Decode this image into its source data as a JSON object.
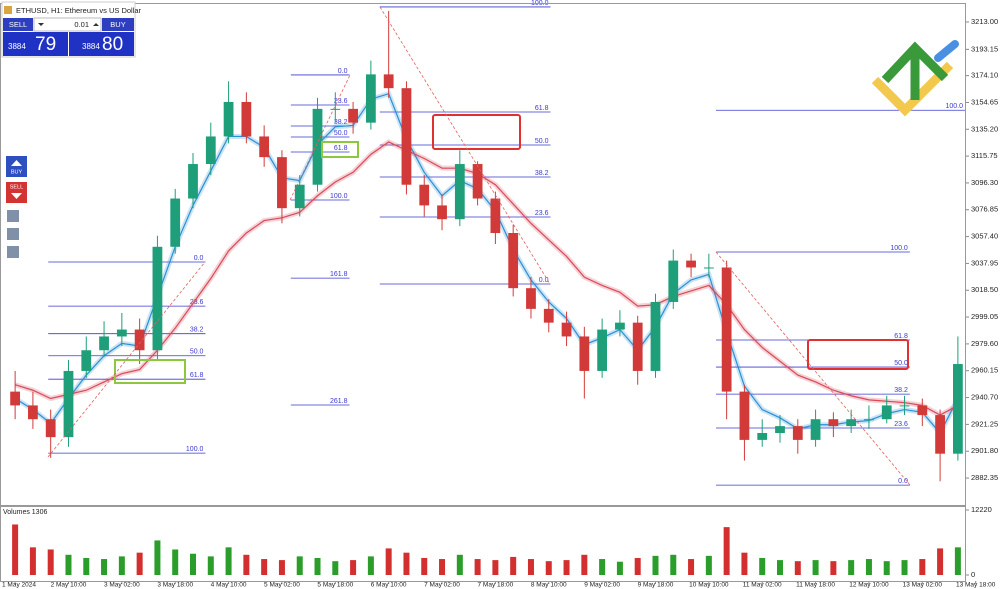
{
  "chart_data": {
    "type": "candlestick",
    "symbol": "ETHUSD, H1: Ethereum vs US Dollar",
    "trade_panel": {
      "sell": "SELL",
      "buy": "BUY",
      "lot": "0.01",
      "bid_main": "3884",
      "bid_pips": "79",
      "ask_main": "3884",
      "ask_pips": "80"
    },
    "side_buttons": {
      "buy": "BUY",
      "sell": "SELL"
    },
    "up_color": "#1f9e7a",
    "down_color": "#d23a3a",
    "grid": false,
    "xlim": [
      -0.85,
      53.4
    ],
    "xticks": [
      {
        "value": 0,
        "label": "1 May 2024"
      },
      {
        "value": 3,
        "label": "2 May 10:00"
      },
      {
        "value": 6,
        "label": "3 May 02:00"
      },
      {
        "value": 9,
        "label": "3 May 18:00"
      },
      {
        "value": 12,
        "label": "4 May 10:00"
      },
      {
        "value": 15,
        "label": "5 May 02:00"
      },
      {
        "value": 18,
        "label": "5 May 18:00"
      },
      {
        "value": 21,
        "label": "6 May 10:00"
      },
      {
        "value": 24,
        "label": "7 May 02:00"
      },
      {
        "value": 27,
        "label": "7 May 18:00"
      },
      {
        "value": 30,
        "label": "8 May 10:00"
      },
      {
        "value": 33,
        "label": "9 May 02:00"
      },
      {
        "value": 36,
        "label": "9 May 18:00"
      },
      {
        "value": 39,
        "label": "10 May 10:00"
      },
      {
        "value": 42,
        "label": "11 May 02:00"
      },
      {
        "value": 45,
        "label": "11 May 18:00"
      },
      {
        "value": 48,
        "label": "12 May 10:00"
      },
      {
        "value": 51,
        "label": "13 May 02:00"
      },
      {
        "value": 54,
        "label": "13 May 18:00"
      }
    ],
    "ylim": [
      2862.8,
      3225.3
    ],
    "yticks": [
      {
        "value": 3213,
        "label": "3213.00"
      },
      {
        "value": 3193.15,
        "label": "3193.15"
      },
      {
        "value": 3174.1,
        "label": "3174.10"
      },
      {
        "value": 3154.65,
        "label": "3154.65"
      },
      {
        "value": 3135.2,
        "label": "3135.20"
      },
      {
        "value": 3115.75,
        "label": "3115.75"
      },
      {
        "value": 3096.3,
        "label": "3096.30"
      },
      {
        "value": 3076.85,
        "label": "3076.85"
      },
      {
        "value": 3057.4,
        "label": "3057.40"
      },
      {
        "value": 3037.95,
        "label": "3037.95"
      },
      {
        "value": 3018.5,
        "label": "3018.50"
      },
      {
        "value": 2999.05,
        "label": "2999.05"
      },
      {
        "value": 2979.6,
        "label": "2979.60"
      },
      {
        "value": 2960.15,
        "label": "2960.15"
      },
      {
        "value": 2940.7,
        "label": "2940.70"
      },
      {
        "value": 2921.25,
        "label": "2921.25"
      },
      {
        "value": 2901.8,
        "label": "2901.80"
      },
      {
        "value": 2882.35,
        "label": "2882.35"
      }
    ],
    "open": [
      2945,
      2935,
      2925,
      2912,
      2960,
      2975,
      2985,
      2990,
      2975,
      3050,
      3085,
      3110,
      3130,
      3155,
      3130,
      3115,
      3078,
      3095,
      3150,
      3150,
      3140,
      3175,
      3165,
      3095,
      3080,
      3070,
      3110,
      3085,
      3060,
      3020,
      3005,
      2995,
      2985,
      2960,
      2990,
      2995,
      2960,
      3010,
      3040,
      3035,
      3035,
      2945,
      2910,
      2915,
      2920,
      2910,
      2925,
      2920,
      2925,
      2925,
      2935,
      2935,
      2928,
      2900
    ],
    "high": [
      2960,
      2945,
      2932,
      2968,
      2985,
      2996,
      3002,
      2998,
      3058,
      3092,
      3118,
      3140,
      3170,
      3162,
      3138,
      3120,
      3102,
      3158,
      3162,
      3155,
      3185,
      3221,
      3170,
      3102,
      3088,
      3120,
      3112,
      3090,
      3066,
      3028,
      3012,
      3003,
      2992,
      2998,
      3004,
      3000,
      3016,
      3048,
      3045,
      3045,
      3040,
      2950,
      2925,
      2928,
      2925,
      2932,
      2930,
      2932,
      2935,
      2942,
      2942,
      2940,
      2932,
      2985
    ],
    "low": [
      2925,
      2918,
      2897,
      2905,
      2955,
      2970,
      2978,
      2965,
      2968,
      3045,
      3078,
      3102,
      3125,
      3125,
      3108,
      3067,
      3072,
      3090,
      3140,
      3132,
      3135,
      3158,
      3088,
      3072,
      3062,
      3065,
      3080,
      3052,
      3014,
      2998,
      2988,
      2978,
      2940,
      2955,
      2985,
      2950,
      2955,
      3005,
      3028,
      3028,
      2925,
      2895,
      2905,
      2908,
      2900,
      2905,
      2912,
      2915,
      2918,
      2922,
      2928,
      2920,
      2880,
      2895
    ],
    "close": [
      2935,
      2925,
      2912,
      2960,
      2975,
      2985,
      2990,
      2975,
      3050,
      3085,
      3110,
      3130,
      3155,
      3130,
      3115,
      3078,
      3095,
      3150,
      3150,
      3140,
      3175,
      3165,
      3095,
      3080,
      3070,
      3110,
      3085,
      3060,
      3020,
      3005,
      2995,
      2985,
      2960,
      2990,
      2995,
      2960,
      3010,
      3040,
      3035,
      3035,
      2945,
      2910,
      2915,
      2920,
      2910,
      2925,
      2920,
      2925,
      2925,
      2935,
      2935,
      2928,
      2900,
      2965
    ],
    "series": [
      {
        "color": "#2b8fd6",
        "values": [
          2940,
          2932,
          2922,
          2940,
          2957,
          2971,
          2980,
          2978,
          3014,
          3050,
          3080,
          3105,
          3130,
          3130,
          3122,
          3100,
          3098,
          3124,
          3137,
          3138,
          3157,
          3161,
          3128,
          3104,
          3087,
          3098,
          3092,
          3076,
          3048,
          3026,
          3010,
          2998,
          2979,
          2984,
          2990,
          2975,
          2992,
          3016,
          3026,
          3030,
          2988,
          2949,
          2932,
          2926,
          2918,
          2921,
          2921,
          2923,
          2924,
          2929,
          2932,
          2930,
          2915,
          2940
        ]
      },
      {
        "color": "#d84a5a",
        "values": [
          2950,
          2946,
          2940,
          2943,
          2946,
          2952,
          2958,
          2961,
          2975,
          2991,
          3009,
          3027,
          3047,
          3060,
          3069,
          3071,
          3075,
          3087,
          3097,
          3104,
          3117,
          3126,
          3120,
          3114,
          3107,
          3107,
          3103,
          3095,
          3081,
          3067,
          3055,
          3043,
          3028,
          3022,
          3017,
          3007,
          3008,
          3014,
          3018,
          3022,
          3008,
          2990,
          2977,
          2967,
          2957,
          2952,
          2946,
          2942,
          2939,
          2938,
          2937,
          2935,
          2928,
          2935
        ]
      }
    ],
    "fib_color": "#3a3ad0",
    "fibs": [
      {
        "x": [
          1.86,
          10.7
        ],
        "levels": [
          {
            "label": "0.0",
            "price": 3039
          },
          {
            "label": "23.6",
            "price": 3007
          },
          {
            "label": "38.2",
            "price": 2987
          },
          {
            "label": "50.0",
            "price": 2971
          },
          {
            "label": "61.8",
            "price": 2954
          },
          {
            "label": "100.0",
            "price": 2900.4
          }
        ]
      },
      {
        "x": [
          15.5,
          18.8
        ],
        "levels": [
          {
            "label": "0.0",
            "price": 3174.6
          },
          {
            "label": "23.6",
            "price": 3152.8
          },
          {
            "label": "38.2",
            "price": 3137.6
          },
          {
            "label": "50.0",
            "price": 3129.6
          },
          {
            "label": "61.8",
            "price": 3118.7
          },
          {
            "label": "100.0",
            "price": 3083.9
          },
          {
            "label": "161.8",
            "price": 3027.3
          },
          {
            "label": "261.8",
            "price": 2935.3
          }
        ]
      },
      {
        "x": [
          20.5,
          30.1
        ],
        "levels": [
          {
            "label": "100.0",
            "price": 3223.9
          },
          {
            "label": "61.8",
            "price": 3147.7
          },
          {
            "label": "50.0",
            "price": 3123.8
          },
          {
            "label": "38.2",
            "price": 3100.6
          },
          {
            "label": "23.6",
            "price": 3071.6
          },
          {
            "label": "0.0",
            "price": 3023.0
          }
        ]
      },
      {
        "x": [
          39.4,
          50.3
        ],
        "levels": [
          {
            "label": "100.0",
            "price": 3046.2
          },
          {
            "label": "61.8",
            "price": 2982.4
          },
          {
            "label": "50.0",
            "price": 2962.8
          },
          {
            "label": "38.2",
            "price": 2943.2
          },
          {
            "label": "23.6",
            "price": 2918.6
          },
          {
            "label": "0.0",
            "price": 2877.2
          }
        ]
      },
      {
        "x": [
          39.4,
          53.4
        ],
        "levels": [
          {
            "label": "100.0",
            "price": 3149
          }
        ]
      }
    ],
    "volume": {
      "label": "Volumes 1306",
      "ylim": [
        0,
        12220
      ],
      "yticks": [
        12220,
        0
      ],
      "values": [
        9500,
        5200,
        4800,
        3800,
        3200,
        3000,
        3500,
        4200,
        6500,
        4800,
        4000,
        3500,
        5200,
        3800,
        3000,
        2800,
        3500,
        3200,
        2600,
        2800,
        3500,
        5000,
        4200,
        3200,
        3000,
        3800,
        3000,
        2800,
        3400,
        3000,
        2600,
        2800,
        3800,
        3000,
        2500,
        3200,
        3600,
        3800,
        3000,
        3600,
        9000,
        4200,
        3200,
        2800,
        2600,
        2800,
        2600,
        2800,
        3000,
        2600,
        2800,
        3000,
        5000,
        5200
      ]
    }
  }
}
